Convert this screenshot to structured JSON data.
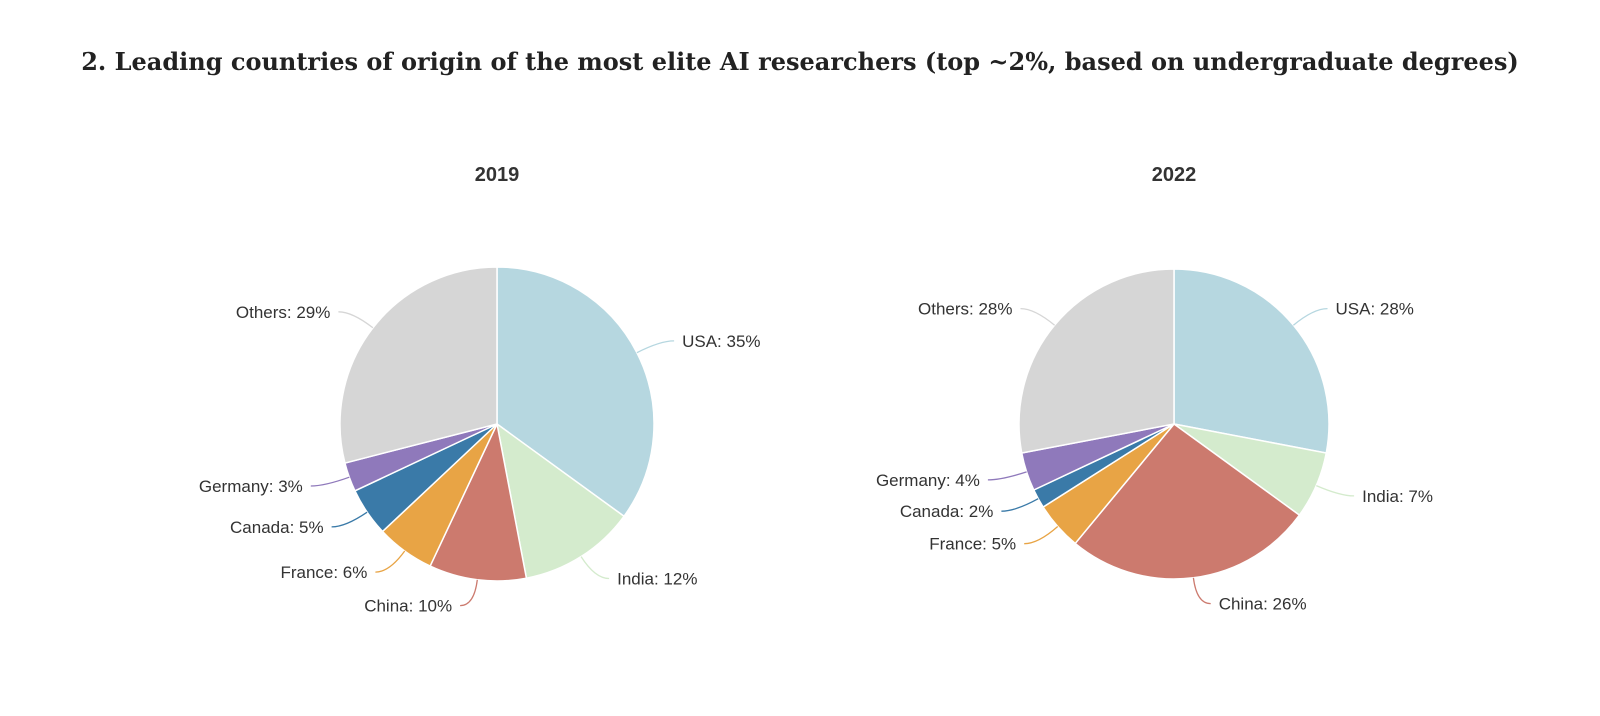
{
  "page": {
    "title": "2. Leading countries of origin of the most elite AI researchers (top ~2%, based on undergraduate degrees)"
  },
  "chart_data": [
    {
      "type": "pie",
      "title": "2019",
      "slices": [
        {
          "label": "USA",
          "value": 35,
          "color": "#b6d7e0"
        },
        {
          "label": "India",
          "value": 12,
          "color": "#d4ebcd"
        },
        {
          "label": "China",
          "value": 10,
          "color": "#cc7a6e"
        },
        {
          "label": "France",
          "value": 6,
          "color": "#e8a445"
        },
        {
          "label": "Canada",
          "value": 5,
          "color": "#3a7aa8"
        },
        {
          "label": "Germany",
          "value": 3,
          "color": "#8f79bb"
        },
        {
          "label": "Others",
          "value": 29,
          "color": "#d6d6d6"
        }
      ]
    },
    {
      "type": "pie",
      "title": "2022",
      "slices": [
        {
          "label": "USA",
          "value": 28,
          "color": "#b6d7e0"
        },
        {
          "label": "India",
          "value": 7,
          "color": "#d4ebcd"
        },
        {
          "label": "China",
          "value": 26,
          "color": "#cc7a6e"
        },
        {
          "label": "France",
          "value": 5,
          "color": "#e8a445"
        },
        {
          "label": "Canada",
          "value": 2,
          "color": "#3a7aa8"
        },
        {
          "label": "Germany",
          "value": 4,
          "color": "#8f79bb"
        },
        {
          "label": "Others",
          "value": 28,
          "color": "#d6d6d6"
        }
      ]
    }
  ]
}
